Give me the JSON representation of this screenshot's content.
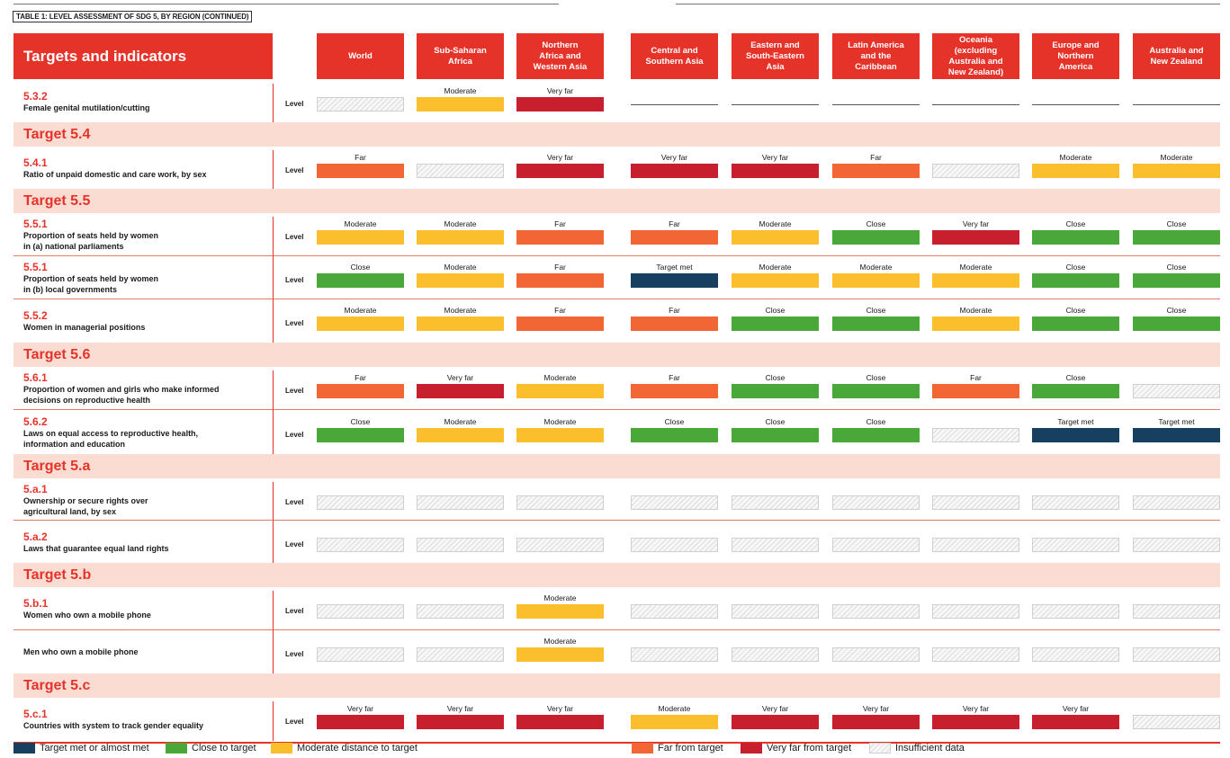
{
  "caption": "TABLE 1: LEVEL ASSESSMENT OF SDG 5, BY REGION (CONTINUED)",
  "header": {
    "targets_label": "Targets and indicators"
  },
  "level_label": "Level",
  "regions": [
    [
      "World"
    ],
    [
      "Sub-Saharan",
      "Africa"
    ],
    [
      "Northern",
      "Africa and",
      "Western Asia"
    ],
    [
      "Central and",
      "Southern Asia"
    ],
    [
      "Eastern and",
      "South-Eastern",
      "Asia"
    ],
    [
      "Latin America",
      "and the",
      "Caribbean"
    ],
    [
      "Oceania",
      "(excluding",
      "Australia and",
      "New Zealand)"
    ],
    [
      "Europe and",
      "Northern",
      "America"
    ],
    [
      "Australia and",
      "New Zealand"
    ]
  ],
  "rating_text": {
    "met": "Target met",
    "close": "Close",
    "moderate": "Moderate",
    "far": "Far",
    "veryfar": "Very far",
    "insufficient": "",
    "none": ""
  },
  "colors": {
    "met": "#173f5f",
    "close": "#4aa83a",
    "moderate": "#fbbf2d",
    "far": "#f26535",
    "veryfar": "#c71f2e",
    "brand_red": "#e5332a",
    "target_band": "#fbdcd3"
  },
  "rows": [
    {
      "type": "indicator",
      "code": "5.3.2",
      "desc": [
        "Female genital mutilation/cutting"
      ],
      "ratings": [
        "insufficient",
        "moderate",
        "veryfar",
        "none",
        "none",
        "none",
        "none",
        "none",
        "none"
      ]
    },
    {
      "type": "target",
      "label": "Target 5.4"
    },
    {
      "type": "indicator",
      "code": "5.4.1",
      "desc": [
        "Ratio of unpaid domestic and care work, by sex"
      ],
      "ratings": [
        "far",
        "insufficient",
        "veryfar",
        "veryfar",
        "veryfar",
        "far",
        "insufficient",
        "moderate",
        "moderate"
      ]
    },
    {
      "type": "target",
      "label": "Target 5.5"
    },
    {
      "type": "indicator",
      "code": "5.5.1",
      "desc": [
        "Proportion of seats held by women",
        "in (a) national parliaments"
      ],
      "ratings": [
        "moderate",
        "moderate",
        "far",
        "far",
        "moderate",
        "close",
        "veryfar",
        "close",
        "close"
      ]
    },
    {
      "type": "indicator",
      "code": "5.5.1",
      "desc": [
        "Proportion of seats held by women",
        "in (b) local governments"
      ],
      "ratings": [
        "close",
        "moderate",
        "far",
        "met",
        "moderate",
        "moderate",
        "moderate",
        "close",
        "close"
      ]
    },
    {
      "type": "indicator",
      "code": "5.5.2",
      "desc": [
        "Women in managerial positions"
      ],
      "ratings": [
        "moderate",
        "moderate",
        "far",
        "far",
        "close",
        "close",
        "moderate",
        "close",
        "close"
      ]
    },
    {
      "type": "target",
      "label": "Target 5.6"
    },
    {
      "type": "indicator",
      "code": "5.6.1",
      "desc": [
        "Proportion of women and girls who make informed",
        "decisions on reproductive health"
      ],
      "ratings": [
        "far",
        "veryfar",
        "moderate",
        "far",
        "close",
        "close",
        "far",
        "close",
        "insufficient"
      ]
    },
    {
      "type": "indicator",
      "code": "5.6.2",
      "desc": [
        "Laws on equal access to reproductive health,",
        "information and education"
      ],
      "ratings": [
        "close",
        "moderate",
        "moderate",
        "close",
        "close",
        "close",
        "insufficient",
        "met",
        "met"
      ]
    },
    {
      "type": "target",
      "label": "Target 5.a"
    },
    {
      "type": "indicator",
      "code": "5.a.1",
      "desc": [
        "Ownership or secure rights over",
        "agricultural land, by sex"
      ],
      "ratings": [
        "insufficient",
        "insufficient",
        "insufficient",
        "insufficient",
        "insufficient",
        "insufficient",
        "insufficient",
        "insufficient",
        "insufficient"
      ]
    },
    {
      "type": "indicator",
      "code": "5.a.2",
      "desc": [
        "Laws that guarantee equal land rights"
      ],
      "ratings": [
        "insufficient",
        "insufficient",
        "insufficient",
        "insufficient",
        "insufficient",
        "insufficient",
        "insufficient",
        "insufficient",
        "insufficient"
      ]
    },
    {
      "type": "target",
      "label": "Target 5.b"
    },
    {
      "type": "indicator",
      "code": "5.b.1",
      "desc": [
        "Women who own a mobile phone"
      ],
      "ratings": [
        "insufficient",
        "insufficient",
        "moderate",
        "insufficient",
        "insufficient",
        "insufficient",
        "insufficient",
        "insufficient",
        "insufficient"
      ]
    },
    {
      "type": "indicator",
      "code": "",
      "desc": [
        "Men who own a mobile phone"
      ],
      "ratings": [
        "insufficient",
        "insufficient",
        "moderate",
        "insufficient",
        "insufficient",
        "insufficient",
        "insufficient",
        "insufficient",
        "insufficient"
      ]
    },
    {
      "type": "target",
      "label": "Target 5.c"
    },
    {
      "type": "indicator",
      "code": "5.c.1",
      "desc": [
        "Countries with system to track gender equality"
      ],
      "ratings": [
        "veryfar",
        "veryfar",
        "veryfar",
        "moderate",
        "veryfar",
        "veryfar",
        "veryfar",
        "veryfar",
        "insufficient"
      ]
    }
  ],
  "legend": [
    {
      "key": "met",
      "label": "Target met or almost met"
    },
    {
      "key": "close",
      "label": "Close to target"
    },
    {
      "key": "moderate",
      "label": "Moderate distance to target"
    },
    {
      "key": "far",
      "label": "Far from target"
    },
    {
      "key": "veryfar",
      "label": "Very far from target"
    },
    {
      "key": "insufficient",
      "label": "Insufficient data"
    }
  ]
}
